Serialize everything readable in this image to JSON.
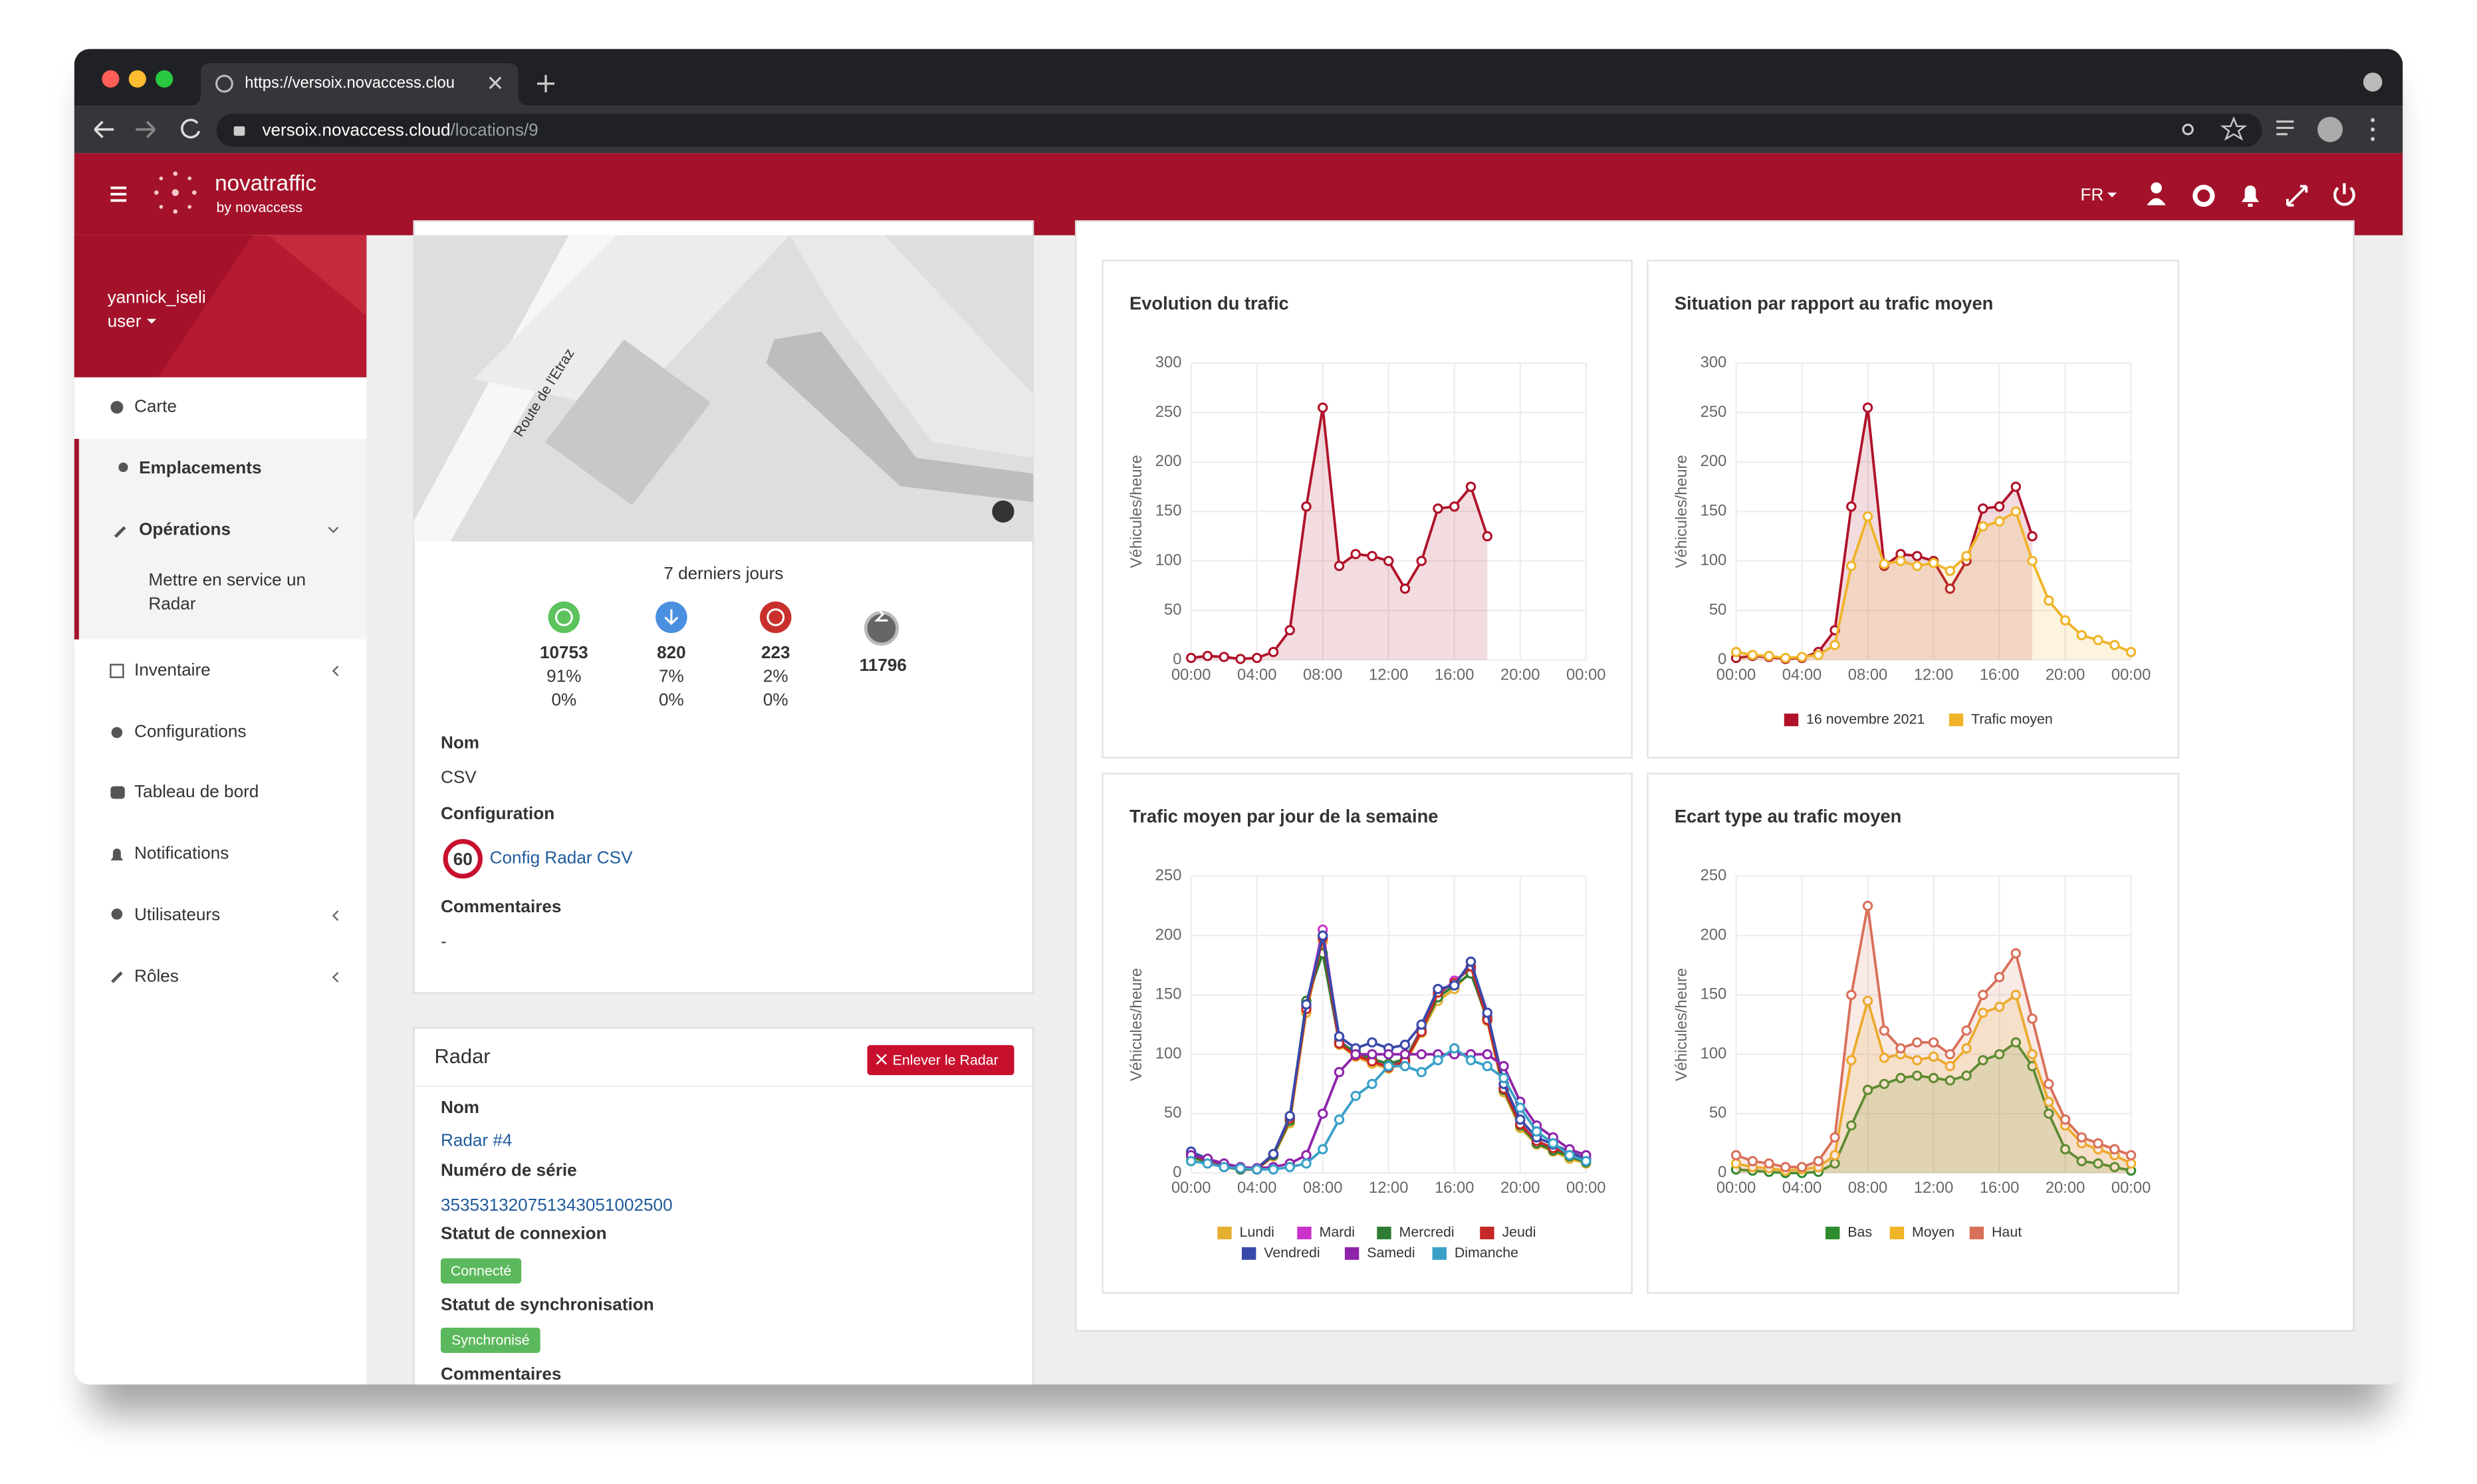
{
  "browser": {
    "tab_title": "https://versoix.novaccess.clou",
    "url_host": "versoix.novaccess.cloud",
    "url_path": "/locations/9"
  },
  "header": {
    "brand": "novatraffic",
    "brand_sub": "by novaccess",
    "language": "FR"
  },
  "sidebar": {
    "user": "yannick_iseli",
    "role": "user",
    "menu": [
      "Carte",
      "Emplacements",
      "Opérations",
      "Inventaire",
      "Configurations",
      "Tableau de bord",
      "Notifications",
      "Utilisateurs",
      "Rôles"
    ],
    "submenu": [
      "Mettre en service un",
      "Radar"
    ]
  },
  "location": {
    "map_label": "Route de l'Etraz",
    "period": "7 derniers jours",
    "stats": [
      {
        "count": 10753,
        "percent": "91%",
        "percent2": "0%"
      },
      {
        "count": 820,
        "percent": "7%",
        "percent2": "0%"
      },
      {
        "count": 223,
        "percent": "2%",
        "percent2": "0%"
      }
    ],
    "total": 11796,
    "name_label": "Nom",
    "name": "CSV",
    "config_label": "Configuration",
    "speed": 60,
    "config": "Config Radar CSV",
    "comments_label": "Commentaires",
    "comments": "-"
  },
  "radar": {
    "title": "Radar",
    "button": "Enlever le Radar",
    "name_label": "Nom",
    "name": "Radar #4",
    "serial_label": "Numéro de série",
    "serial": "353531320751343051002500",
    "connection_label": "Statut de connexion",
    "connection": "Connecté",
    "sync_label": "Statut de synchronisation",
    "sync": "Synchronisé",
    "comments_label": "Commentaires"
  },
  "chart_data": [
    {
      "type": "line",
      "title": "Evolution du trafic",
      "ylabel": "Véhicules/heure",
      "area": true,
      "grid": true,
      "legend": false,
      "x": [
        0,
        1,
        2,
        3,
        4,
        5,
        6,
        7,
        8,
        9,
        10,
        11,
        12,
        13,
        14,
        15,
        16,
        17,
        18,
        19,
        20,
        21,
        22,
        23,
        24
      ],
      "xlim": [
        0,
        24
      ],
      "xticks": [
        {
          "value": 0,
          "label": "00:00"
        },
        {
          "value": 4,
          "label": "04:00"
        },
        {
          "value": 8,
          "label": "08:00"
        },
        {
          "value": 12,
          "label": "12:00"
        },
        {
          "value": 16,
          "label": "16:00"
        },
        {
          "value": 20,
          "label": "20:00"
        },
        {
          "value": 24,
          "label": "00:00"
        }
      ],
      "ylim": [
        0,
        300
      ],
      "yticks": [
        0,
        50,
        100,
        150,
        200,
        250,
        300
      ],
      "series": [
        {
          "color": "#b0122a",
          "values": [
            2,
            4,
            3,
            1,
            2,
            8,
            30,
            155,
            255,
            95,
            107,
            105,
            100,
            72,
            100,
            153,
            155,
            175,
            125,
            null,
            null,
            null,
            null,
            null,
            null
          ]
        }
      ]
    },
    {
      "type": "line",
      "title": "Situation par rapport au trafic moyen",
      "ylabel": "Véhicules/heure",
      "area": true,
      "grid": true,
      "legend": true,
      "x": [
        0,
        1,
        2,
        3,
        4,
        5,
        6,
        7,
        8,
        9,
        10,
        11,
        12,
        13,
        14,
        15,
        16,
        17,
        18,
        19,
        20,
        21,
        22,
        23,
        24
      ],
      "xlim": [
        0,
        24
      ],
      "xticks": [
        {
          "value": 0,
          "label": "00:00"
        },
        {
          "value": 4,
          "label": "04:00"
        },
        {
          "value": 8,
          "label": "08:00"
        },
        {
          "value": 12,
          "label": "12:00"
        },
        {
          "value": 16,
          "label": "16:00"
        },
        {
          "value": 20,
          "label": "20:00"
        },
        {
          "value": 24,
          "label": "00:00"
        }
      ],
      "ylim": [
        0,
        300
      ],
      "yticks": [
        0,
        50,
        100,
        150,
        200,
        250,
        300
      ],
      "series": [
        {
          "name": "16 novembre 2021",
          "color": "#b0122a",
          "values": [
            2,
            4,
            3,
            1,
            2,
            8,
            30,
            155,
            255,
            95,
            107,
            105,
            100,
            72,
            100,
            153,
            155,
            175,
            125,
            null,
            null,
            null,
            null,
            null,
            null
          ]
        },
        {
          "name": "Trafic moyen",
          "color": "#f0b429",
          "values": [
            8,
            5,
            4,
            2,
            3,
            5,
            15,
            95,
            145,
            97,
            100,
            95,
            98,
            90,
            105,
            135,
            140,
            150,
            100,
            60,
            40,
            25,
            20,
            15,
            8
          ]
        }
      ]
    },
    {
      "type": "line",
      "title": "Trafic moyen par jour de la semaine",
      "ylabel": "Véhicules/heure",
      "area": false,
      "grid": true,
      "legend": true,
      "x": [
        0,
        1,
        2,
        3,
        4,
        5,
        6,
        7,
        8,
        9,
        10,
        11,
        12,
        13,
        14,
        15,
        16,
        17,
        18,
        19,
        20,
        21,
        22,
        23,
        24
      ],
      "xlim": [
        0,
        24
      ],
      "xticks": [
        {
          "value": 0,
          "label": "00:00"
        },
        {
          "value": 4,
          "label": "04:00"
        },
        {
          "value": 8,
          "label": "08:00"
        },
        {
          "value": 12,
          "label": "12:00"
        },
        {
          "value": 16,
          "label": "16:00"
        },
        {
          "value": 20,
          "label": "20:00"
        },
        {
          "value": 24,
          "label": "00:00"
        }
      ],
      "ylim": [
        0,
        250
      ],
      "yticks": [
        0,
        50,
        100,
        150,
        200,
        250
      ],
      "series": [
        {
          "name": "Lundi",
          "color": "#e6b030",
          "values": [
            12,
            8,
            5,
            3,
            3,
            14,
            42,
            135,
            195,
            108,
            98,
            92,
            88,
            92,
            118,
            145,
            155,
            170,
            128,
            68,
            38,
            24,
            18,
            12,
            8
          ]
        },
        {
          "name": "Mardi",
          "color": "#cc33cc",
          "values": [
            15,
            10,
            6,
            3,
            3,
            15,
            45,
            140,
            205,
            112,
            100,
            95,
            90,
            95,
            122,
            150,
            162,
            172,
            132,
            72,
            42,
            26,
            20,
            15,
            10
          ]
        },
        {
          "name": "Mercredi",
          "color": "#2e7d32",
          "values": [
            14,
            9,
            5,
            3,
            3,
            15,
            44,
            145,
            185,
            110,
            102,
            96,
            92,
            96,
            120,
            148,
            158,
            168,
            130,
            70,
            40,
            25,
            19,
            14,
            9
          ]
        },
        {
          "name": "Jeudi",
          "color": "#c62828",
          "values": [
            16,
            10,
            6,
            4,
            3,
            16,
            46,
            138,
            198,
            109,
            99,
            94,
            89,
            94,
            119,
            152,
            160,
            174,
            129,
            71,
            41,
            27,
            21,
            16,
            11
          ]
        },
        {
          "name": "Vendredi",
          "color": "#3949ab",
          "values": [
            18,
            12,
            7,
            4,
            4,
            16,
            48,
            142,
            200,
            115,
            105,
            110,
            105,
            108,
            125,
            155,
            158,
            178,
            135,
            75,
            45,
            30,
            24,
            18,
            12
          ]
        },
        {
          "name": "Samedi",
          "color": "#8e24aa",
          "values": [
            15,
            12,
            8,
            5,
            4,
            5,
            8,
            15,
            50,
            85,
            100,
            100,
            100,
            100,
            100,
            100,
            100,
            100,
            100,
            90,
            60,
            40,
            30,
            20,
            15
          ]
        },
        {
          "name": "Dimanche",
          "color": "#39a0c8",
          "values": [
            10,
            8,
            5,
            4,
            3,
            3,
            5,
            8,
            20,
            45,
            65,
            75,
            90,
            90,
            85,
            95,
            105,
            95,
            90,
            80,
            55,
            35,
            25,
            15,
            10
          ]
        }
      ]
    },
    {
      "type": "line",
      "title": "Ecart type au trafic moyen",
      "ylabel": "Véhicules/heure",
      "area": true,
      "grid": true,
      "legend": true,
      "x": [
        0,
        1,
        2,
        3,
        4,
        5,
        6,
        7,
        8,
        9,
        10,
        11,
        12,
        13,
        14,
        15,
        16,
        17,
        18,
        19,
        20,
        21,
        22,
        23,
        24
      ],
      "xlim": [
        0,
        24
      ],
      "xticks": [
        {
          "value": 0,
          "label": "00:00"
        },
        {
          "value": 4,
          "label": "04:00"
        },
        {
          "value": 8,
          "label": "08:00"
        },
        {
          "value": 12,
          "label": "12:00"
        },
        {
          "value": 16,
          "label": "16:00"
        },
        {
          "value": 20,
          "label": "20:00"
        },
        {
          "value": 24,
          "label": "00:00"
        }
      ],
      "ylim": [
        0,
        250
      ],
      "yticks": [
        0,
        50,
        100,
        150,
        200,
        250
      ],
      "series": [
        {
          "name": "Bas",
          "color": "#2e8b2e",
          "values": [
            3,
            2,
            1,
            0,
            0,
            1,
            8,
            40,
            70,
            75,
            80,
            82,
            80,
            78,
            82,
            95,
            100,
            110,
            90,
            50,
            20,
            10,
            8,
            5,
            2
          ]
        },
        {
          "name": "Moyen",
          "color": "#f0b429",
          "values": [
            8,
            5,
            4,
            2,
            3,
            5,
            15,
            95,
            145,
            97,
            100,
            95,
            98,
            90,
            105,
            135,
            140,
            150,
            100,
            60,
            40,
            25,
            20,
            15,
            8
          ]
        },
        {
          "name": "Haut",
          "color": "#d9705a",
          "values": [
            15,
            10,
            8,
            5,
            5,
            10,
            30,
            150,
            225,
            120,
            105,
            110,
            110,
            100,
            120,
            150,
            165,
            185,
            130,
            75,
            45,
            30,
            25,
            20,
            15
          ]
        }
      ]
    }
  ]
}
